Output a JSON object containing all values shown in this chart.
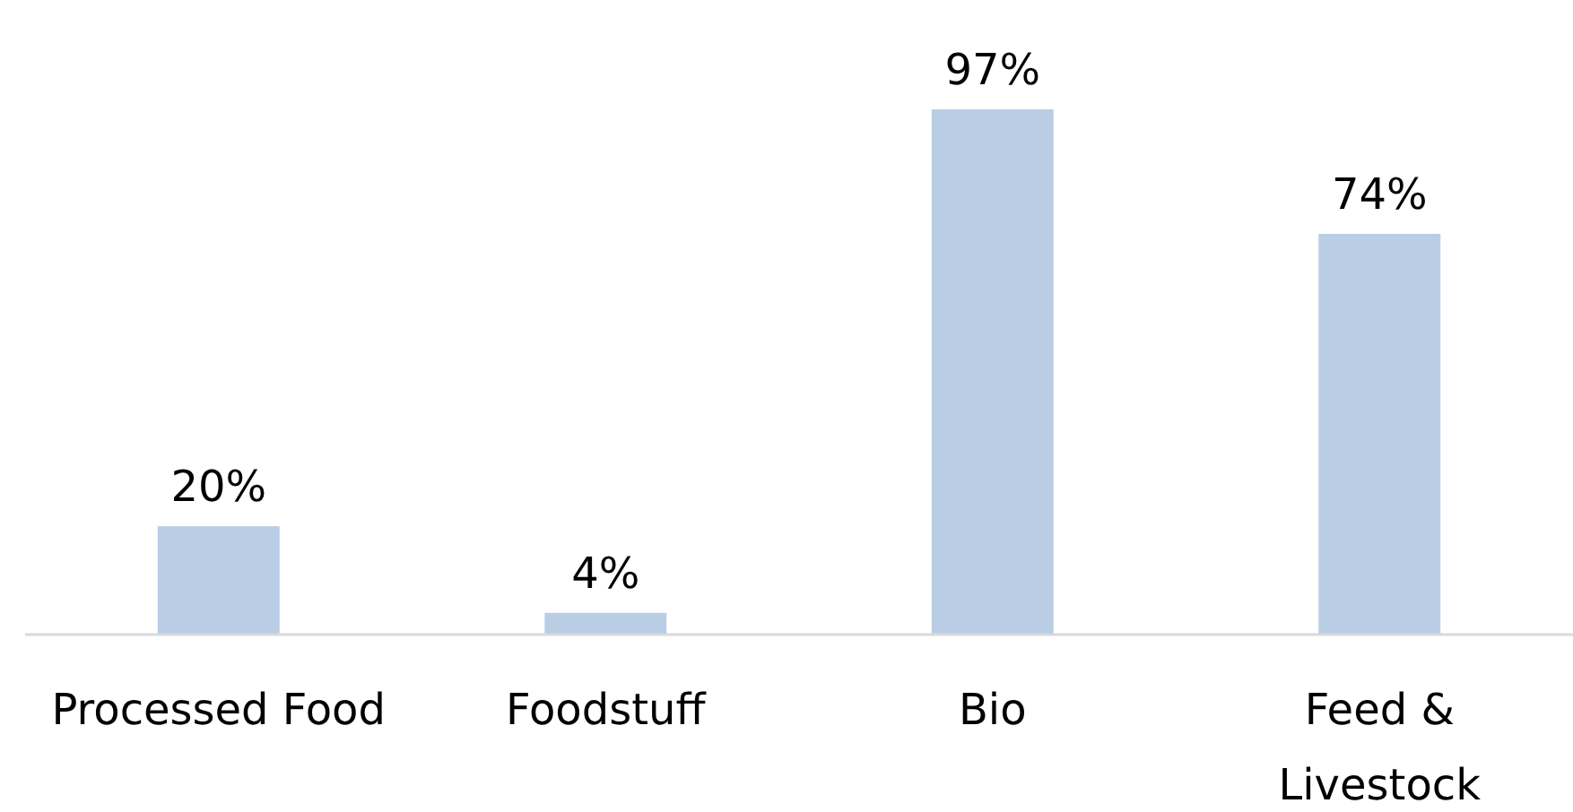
{
  "chart_data": {
    "type": "bar",
    "categories": [
      "Processed Food",
      "Foodstuff",
      "Bio",
      "Feed & Livestock"
    ],
    "values": [
      20,
      4,
      97,
      74
    ],
    "color": "#b9cde5",
    "value_labels": [
      "20%",
      "4%",
      "97%",
      "74%"
    ]
  }
}
